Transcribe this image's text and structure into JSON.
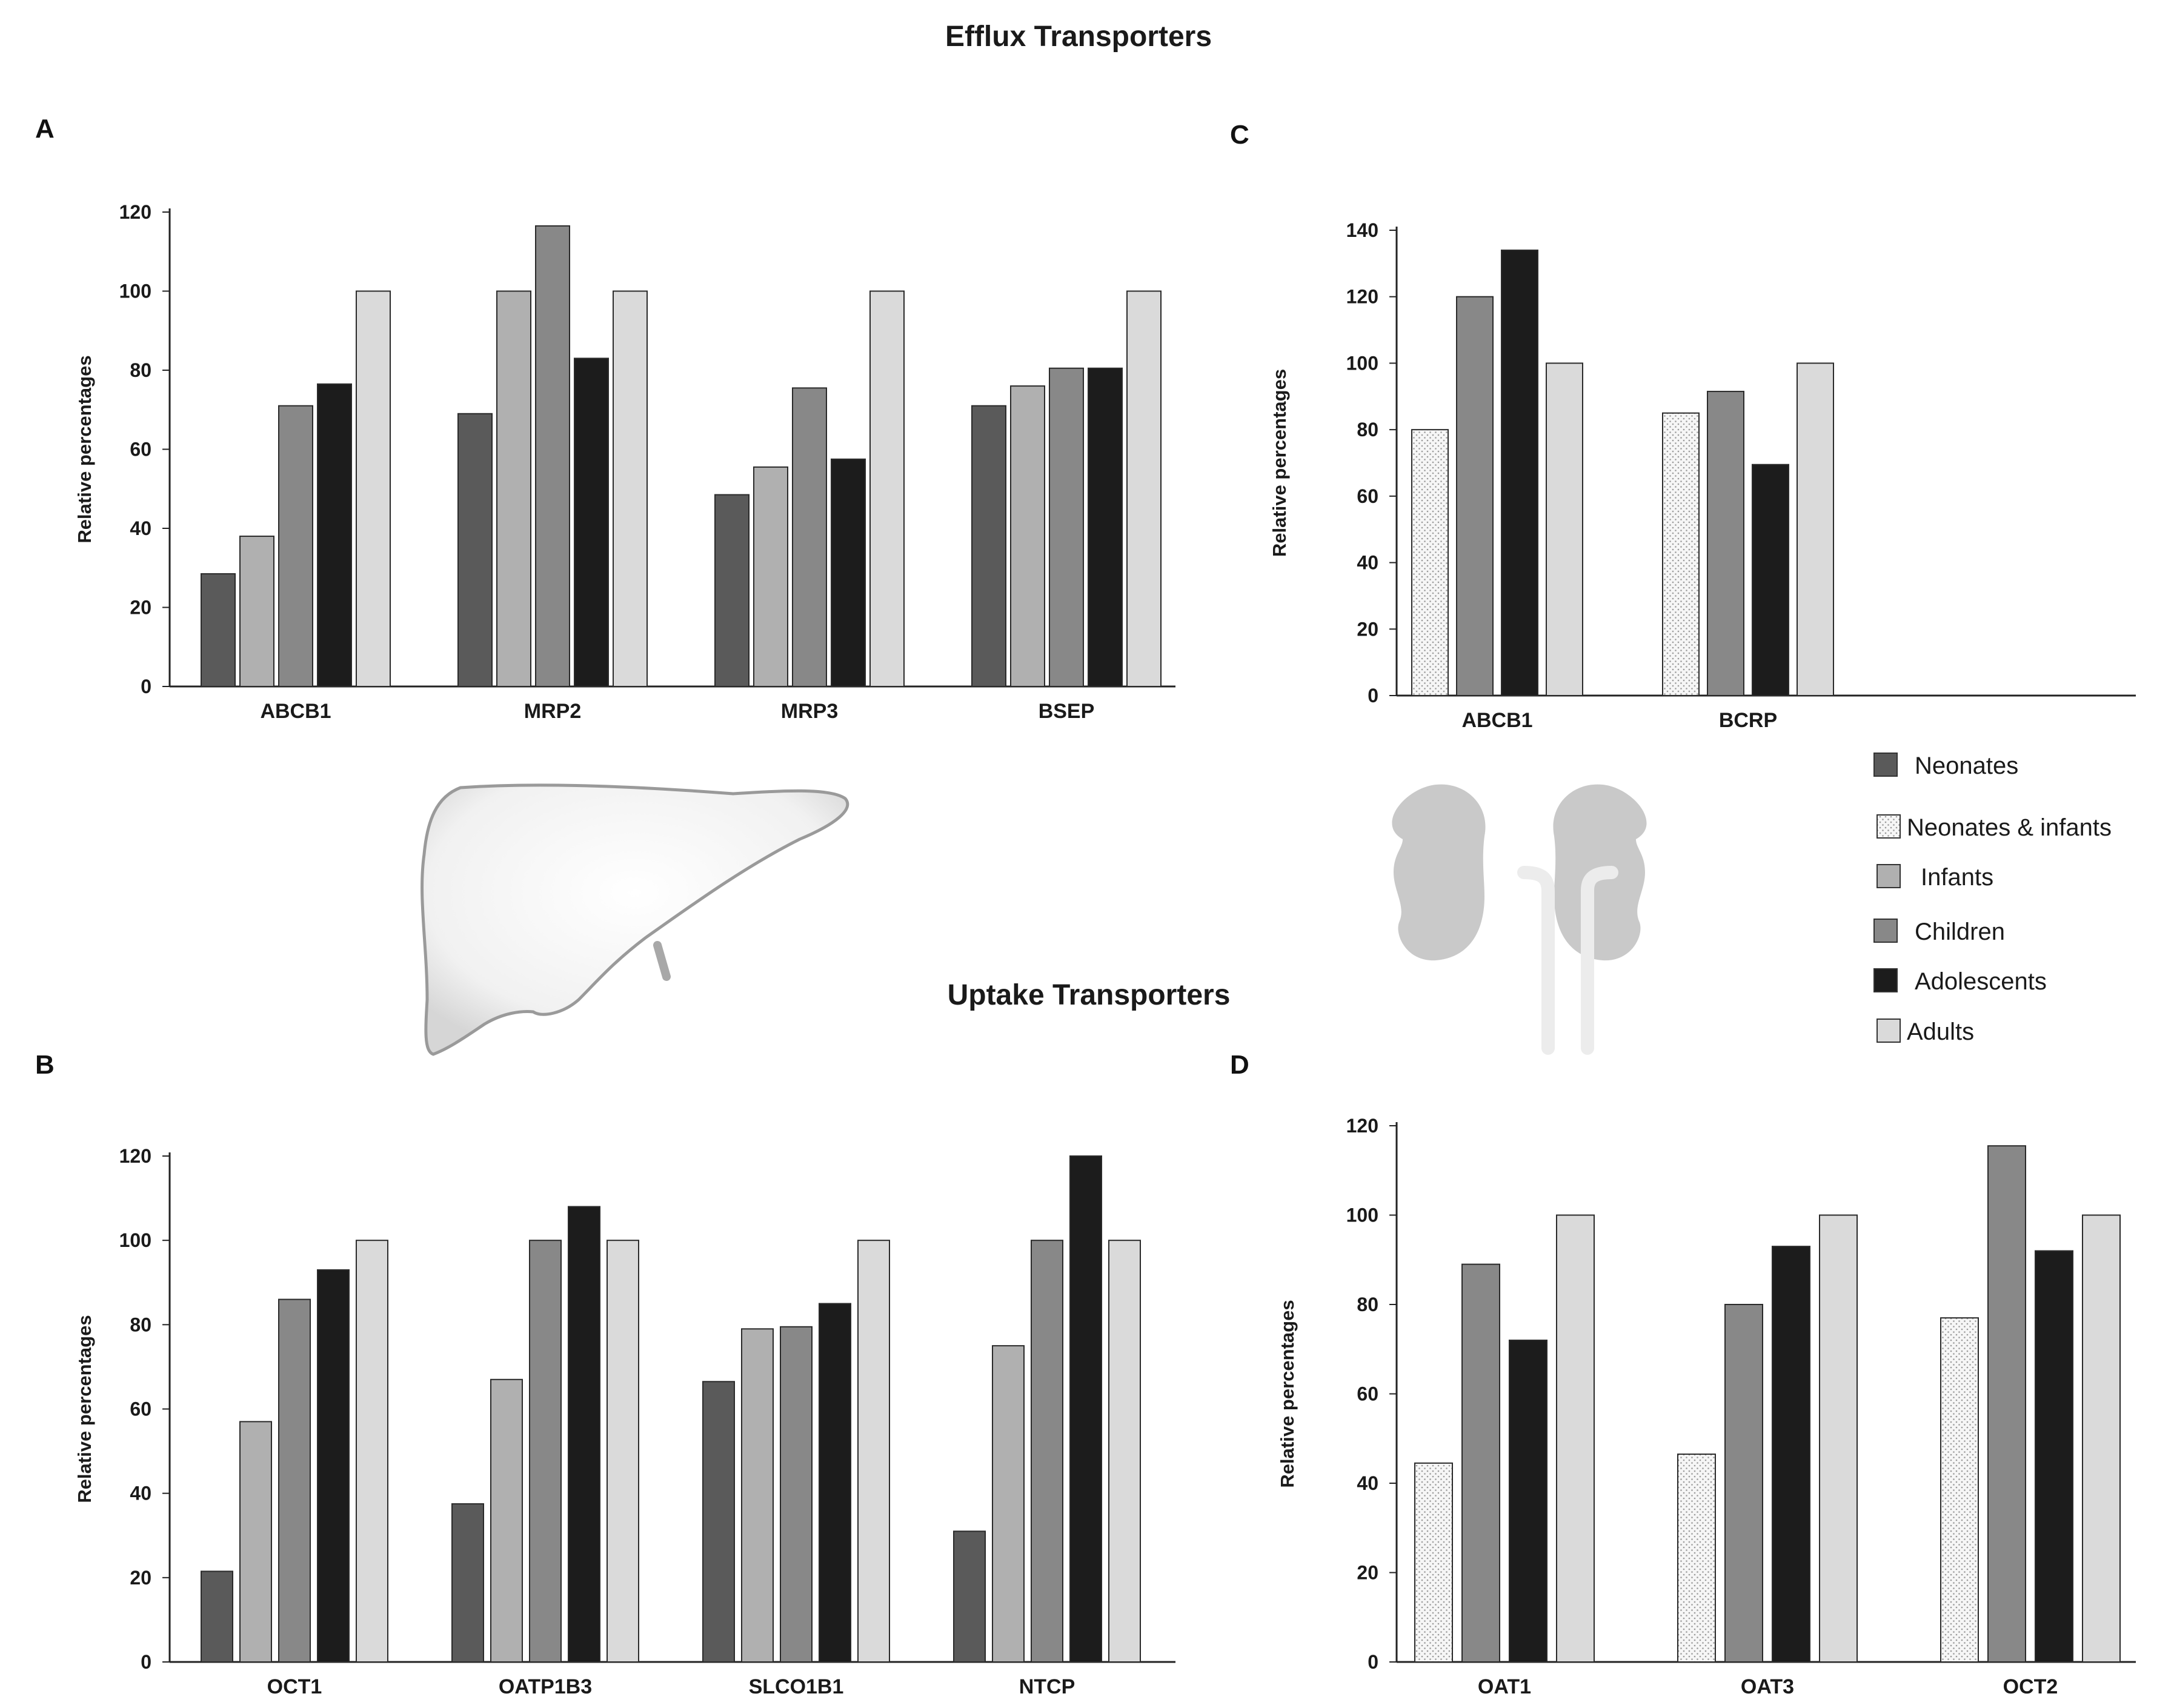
{
  "figure": {
    "efflux_title": "Efflux Transporters",
    "uptake_title": "Uptake Transporters"
  },
  "colors": {
    "Neonates": "#5a5a5a",
    "Neonates & infants": "#f4f4f4",
    "Infants": "#b0b0b0",
    "Children": "#888888",
    "Adolescents": "#1c1c1c",
    "Adults": "#dadada"
  },
  "legend": {
    "items": [
      "Neonates",
      "Neonates & infants",
      "Infants",
      "Children",
      "Adolescents",
      "Adults"
    ]
  },
  "chart_data": [
    {
      "id": "A",
      "panel_label": "A",
      "type": "bar",
      "title": "",
      "xlabel": "",
      "ylabel": "Relative percentages",
      "ylim": [
        0,
        120
      ],
      "yticks": [
        0,
        20,
        40,
        60,
        80,
        100,
        120
      ],
      "categories": [
        "ABCB1",
        "MRP2",
        "MRP3",
        "BSEP"
      ],
      "series": [
        {
          "name": "Neonates",
          "values": [
            28.5,
            69,
            48.5,
            71
          ]
        },
        {
          "name": "Infants",
          "values": [
            38,
            100,
            55.5,
            76
          ]
        },
        {
          "name": "Children",
          "values": [
            71,
            116.5,
            75.5,
            80.5
          ]
        },
        {
          "name": "Adolescents",
          "values": [
            76.5,
            83,
            57.5,
            80.5
          ]
        },
        {
          "name": "Adults",
          "values": [
            100,
            100,
            100,
            100
          ]
        }
      ]
    },
    {
      "id": "C",
      "panel_label": "C",
      "type": "bar",
      "title": "",
      "xlabel": "",
      "ylabel": "Relative percentages",
      "ylim": [
        0,
        140
      ],
      "yticks": [
        0,
        20,
        40,
        60,
        80,
        100,
        120,
        140
      ],
      "categories": [
        "ABCB1",
        "BCRP"
      ],
      "series": [
        {
          "name": "Neonates & infants",
          "values": [
            80,
            85
          ]
        },
        {
          "name": "Children",
          "values": [
            120,
            91.5
          ]
        },
        {
          "name": "Adolescents",
          "values": [
            134,
            69.5
          ]
        },
        {
          "name": "Adults",
          "values": [
            100,
            100
          ]
        }
      ]
    },
    {
      "id": "B",
      "panel_label": "B",
      "type": "bar",
      "title": "",
      "xlabel": "",
      "ylabel": "Relative percentages",
      "ylim": [
        0,
        120
      ],
      "yticks": [
        0,
        20,
        40,
        60,
        80,
        100,
        120
      ],
      "categories": [
        "OCT1",
        "OATP1B3",
        "SLCO1B1",
        "NTCP"
      ],
      "series": [
        {
          "name": "Neonates",
          "values": [
            21.5,
            37.5,
            66.5,
            31
          ]
        },
        {
          "name": "Infants",
          "values": [
            57,
            67,
            79,
            75
          ]
        },
        {
          "name": "Children",
          "values": [
            86,
            100,
            79.5,
            100
          ]
        },
        {
          "name": "Adolescents",
          "values": [
            93,
            108,
            85,
            120
          ]
        },
        {
          "name": "Adults",
          "values": [
            100,
            100,
            100,
            100
          ]
        }
      ]
    },
    {
      "id": "D",
      "panel_label": "D",
      "type": "bar",
      "title": "",
      "xlabel": "",
      "ylabel": "Relative percentages",
      "ylim": [
        0,
        120
      ],
      "yticks": [
        0,
        20,
        40,
        60,
        80,
        100,
        120
      ],
      "categories": [
        "OAT1",
        "OAT3",
        "OCT2"
      ],
      "series": [
        {
          "name": "Neonates & infants",
          "values": [
            44.5,
            46.5,
            77
          ]
        },
        {
          "name": "Children",
          "values": [
            89,
            80,
            115.5
          ]
        },
        {
          "name": "Adolescents",
          "values": [
            72,
            93,
            92
          ]
        },
        {
          "name": "Adults",
          "values": [
            100,
            100,
            100
          ]
        }
      ]
    }
  ]
}
